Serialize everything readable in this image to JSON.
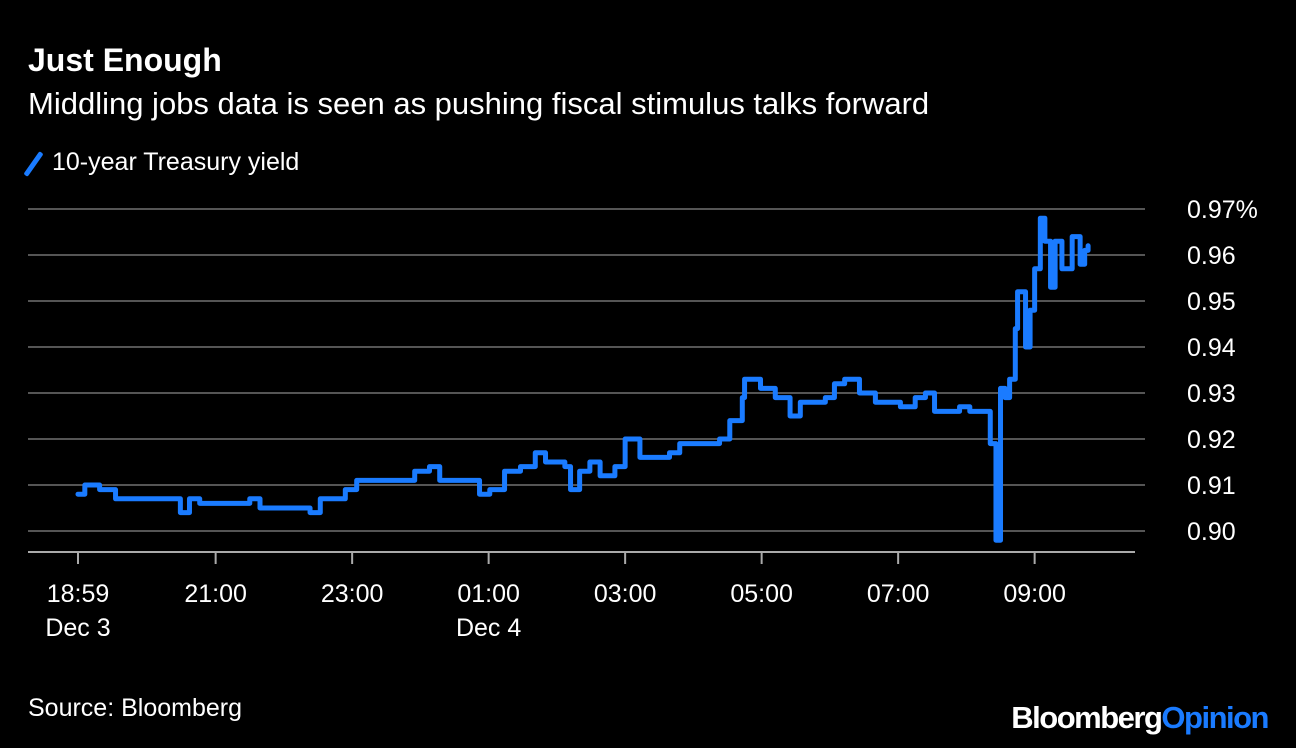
{
  "title": "Just Enough",
  "subtitle": "Middling jobs data is seen as pushing fiscal stimulus talks forward",
  "source": "Source: Bloomberg",
  "logo": {
    "part1": "Bloomberg",
    "part2": "Opinion"
  },
  "colors": {
    "series": "#1a7bff",
    "grid": "#555555",
    "background": "#000000"
  },
  "chart_data": {
    "type": "line",
    "step": true,
    "title": "Just Enough",
    "subtitle": "Middling jobs data is seen as pushing fiscal stimulus talks forward",
    "xlabel": "",
    "ylabel": "",
    "ylim": [
      0.9,
      0.97
    ],
    "xlim": [
      "Dec 3 18:59",
      "Dec 4 09:47"
    ],
    "grid": true,
    "legend": "top-left",
    "y_ticks": [
      "0.97%",
      "0.96",
      "0.95",
      "0.94",
      "0.93",
      "0.92",
      "0.91",
      "0.90"
    ],
    "y_tick_values": [
      0.97,
      0.96,
      0.95,
      0.94,
      0.93,
      0.92,
      0.91,
      0.9
    ],
    "x_ticks": [
      {
        "time": "Dec 3 18:59",
        "label": "18:59",
        "sublabel": "Dec 3"
      },
      {
        "time": "Dec 3 21:00",
        "label": "21:00",
        "sublabel": ""
      },
      {
        "time": "Dec 3 23:00",
        "label": "23:00",
        "sublabel": ""
      },
      {
        "time": "Dec 4 01:00",
        "label": "01:00",
        "sublabel": "Dec 4"
      },
      {
        "time": "Dec 4 03:00",
        "label": "03:00",
        "sublabel": ""
      },
      {
        "time": "Dec 4 05:00",
        "label": "05:00",
        "sublabel": ""
      },
      {
        "time": "Dec 4 07:00",
        "label": "07:00",
        "sublabel": ""
      },
      {
        "time": "Dec 4 09:00",
        "label": "09:00",
        "sublabel": ""
      }
    ],
    "series": [
      {
        "name": "10-year Treasury yield",
        "color": "#1a7bff",
        "points": [
          [
            "Dec 3 18:59",
            0.908
          ],
          [
            "Dec 3 19:05",
            0.91
          ],
          [
            "Dec 3 19:18",
            0.909
          ],
          [
            "Dec 3 19:32",
            0.907
          ],
          [
            "Dec 3 20:11",
            0.907
          ],
          [
            "Dec 3 20:29",
            0.904
          ],
          [
            "Dec 3 20:37",
            0.907
          ],
          [
            "Dec 3 20:46",
            0.906
          ],
          [
            "Dec 3 21:30",
            0.907
          ],
          [
            "Dec 3 21:39",
            0.905
          ],
          [
            "Dec 3 22:14",
            0.905
          ],
          [
            "Dec 3 22:23",
            0.904
          ],
          [
            "Dec 3 22:32",
            0.907
          ],
          [
            "Dec 3 22:54",
            0.909
          ],
          [
            "Dec 3 23:04",
            0.911
          ],
          [
            "Dec 3 23:42",
            0.911
          ],
          [
            "Dec 3 23:55",
            0.913
          ],
          [
            "Dec 4 00:08",
            0.914
          ],
          [
            "Dec 4 00:17",
            0.911
          ],
          [
            "Dec 4 00:44",
            0.911
          ],
          [
            "Dec 4 00:52",
            0.908
          ],
          [
            "Dec 4 01:01",
            0.909
          ],
          [
            "Dec 4 01:14",
            0.913
          ],
          [
            "Dec 4 01:28",
            0.914
          ],
          [
            "Dec 4 01:41",
            0.917
          ],
          [
            "Dec 4 01:50",
            0.915
          ],
          [
            "Dec 4 02:07",
            0.914
          ],
          [
            "Dec 4 02:12",
            0.909
          ],
          [
            "Dec 4 02:20",
            0.913
          ],
          [
            "Dec 4 02:29",
            0.915
          ],
          [
            "Dec 4 02:38",
            0.912
          ],
          [
            "Dec 4 02:51",
            0.914
          ],
          [
            "Dec 4 03:00",
            0.92
          ],
          [
            "Dec 4 03:13",
            0.916
          ],
          [
            "Dec 4 03:39",
            0.917
          ],
          [
            "Dec 4 03:48",
            0.919
          ],
          [
            "Dec 4 04:23",
            0.92
          ],
          [
            "Dec 4 04:32",
            0.924
          ],
          [
            "Dec 4 04:43",
            0.929
          ],
          [
            "Dec 4 04:45",
            0.933
          ],
          [
            "Dec 4 04:59",
            0.931
          ],
          [
            "Dec 4 05:12",
            0.929
          ],
          [
            "Dec 4 05:25",
            0.925
          ],
          [
            "Dec 4 05:34",
            0.928
          ],
          [
            "Dec 4 05:56",
            0.929
          ],
          [
            "Dec 4 06:04",
            0.932
          ],
          [
            "Dec 4 06:13",
            0.933
          ],
          [
            "Dec 4 06:26",
            0.93
          ],
          [
            "Dec 4 06:40",
            0.928
          ],
          [
            "Dec 4 07:02",
            0.927
          ],
          [
            "Dec 4 07:15",
            0.929
          ],
          [
            "Dec 4 07:24",
            0.93
          ],
          [
            "Dec 4 07:32",
            0.926
          ],
          [
            "Dec 4 07:54",
            0.927
          ],
          [
            "Dec 4 08:03",
            0.926
          ],
          [
            "Dec 4 08:16",
            0.926
          ],
          [
            "Dec 4 08:21",
            0.919
          ],
          [
            "Dec 4 08:26",
            0.898
          ],
          [
            "Dec 4 08:30",
            0.931
          ],
          [
            "Dec 4 08:34",
            0.929
          ],
          [
            "Dec 4 08:38",
            0.933
          ],
          [
            "Dec 4 08:43",
            0.944
          ],
          [
            "Dec 4 08:45",
            0.952
          ],
          [
            "Dec 4 08:52",
            0.94
          ],
          [
            "Dec 4 08:56",
            0.948
          ],
          [
            "Dec 4 09:00",
            0.957
          ],
          [
            "Dec 4 09:05",
            0.968
          ],
          [
            "Dec 4 09:09",
            0.963
          ],
          [
            "Dec 4 09:14",
            0.953
          ],
          [
            "Dec 4 09:18",
            0.963
          ],
          [
            "Dec 4 09:24",
            0.957
          ],
          [
            "Dec 4 09:33",
            0.964
          ],
          [
            "Dec 4 09:40",
            0.958
          ],
          [
            "Dec 4 09:44",
            0.961
          ],
          [
            "Dec 4 09:47",
            0.962
          ]
        ]
      }
    ]
  }
}
